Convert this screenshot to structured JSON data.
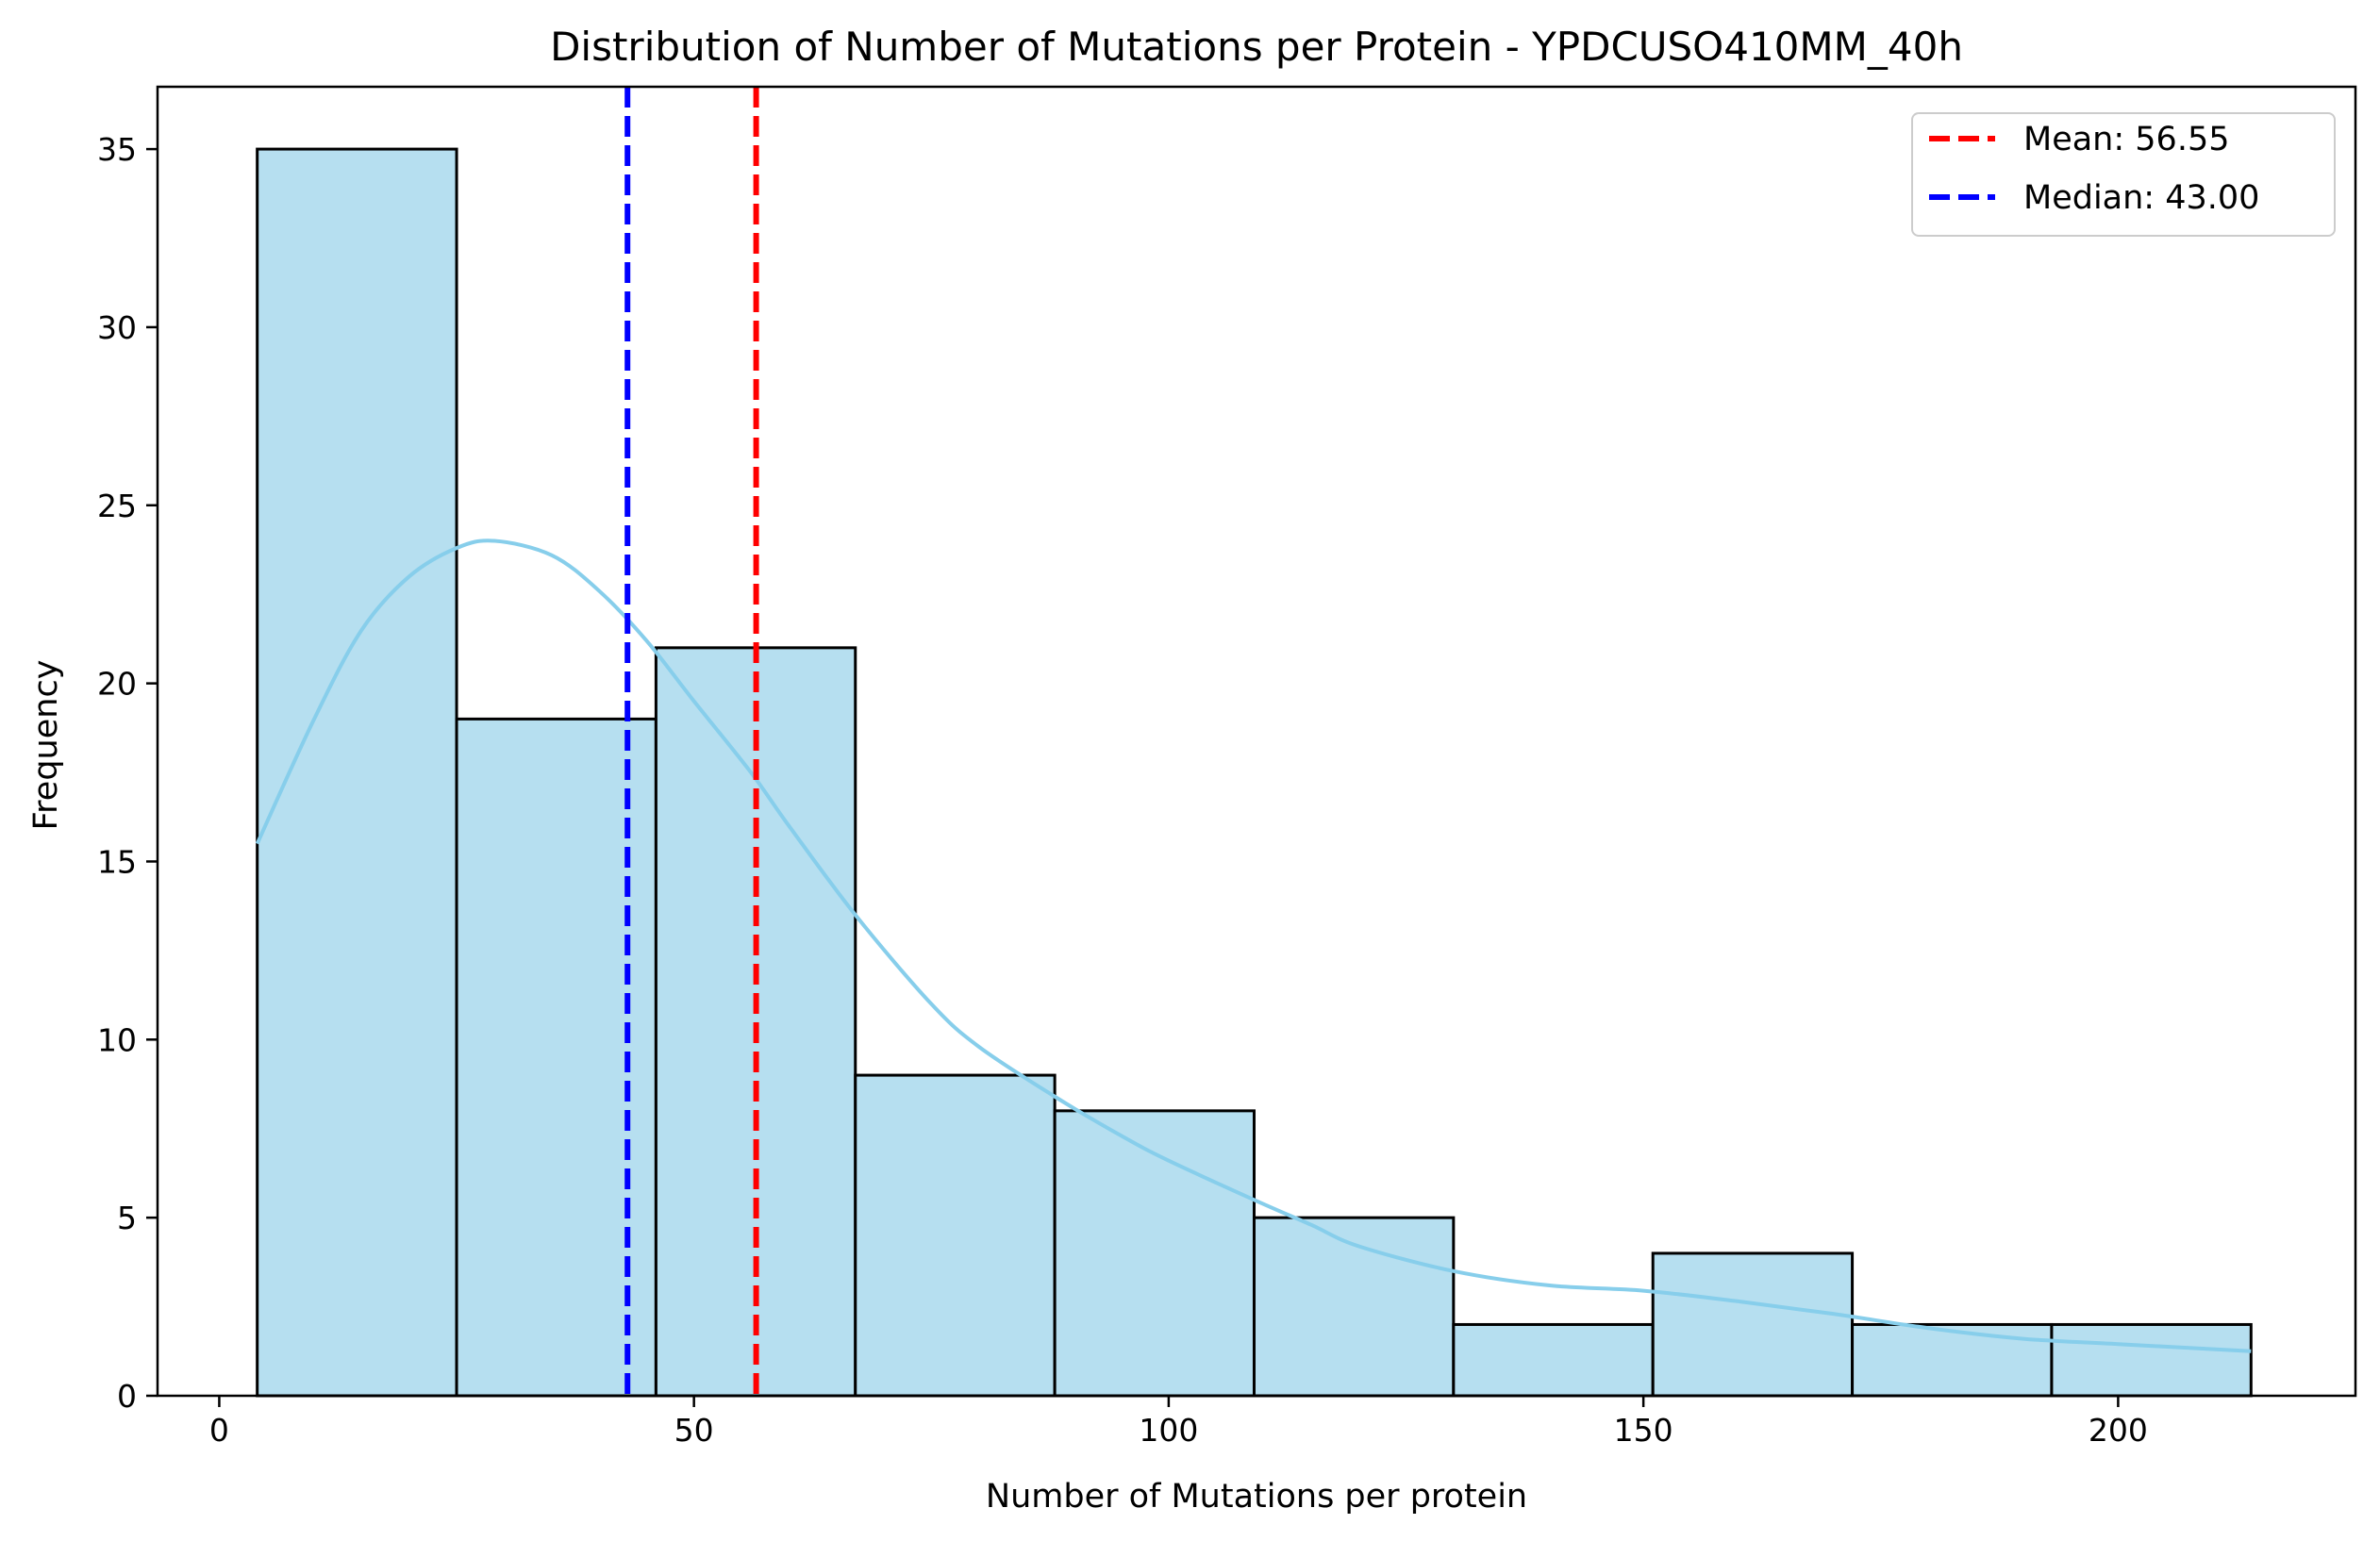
{
  "chart_data": {
    "type": "bar",
    "title": "Distribution of Number of Mutations per Protein - YPDCUSO410MM_40h",
    "xlabel": "Number of Mutations per protein",
    "ylabel": "Frequency",
    "xlim": [
      -6.5,
      225
    ],
    "ylim": [
      0,
      36.75
    ],
    "xticks": [
      0,
      50,
      100,
      150,
      200
    ],
    "yticks": [
      0,
      5,
      10,
      15,
      20,
      25,
      30,
      35
    ],
    "bins": [
      {
        "x0": 4,
        "x1": 25,
        "count": 35
      },
      {
        "x0": 25,
        "x1": 46,
        "count": 19
      },
      {
        "x0": 46,
        "x1": 67,
        "count": 21
      },
      {
        "x0": 67,
        "x1": 88,
        "count": 9
      },
      {
        "x0": 88,
        "x1": 109,
        "count": 8
      },
      {
        "x0": 109,
        "x1": 130,
        "count": 5
      },
      {
        "x0": 130,
        "x1": 151,
        "count": 2
      },
      {
        "x0": 151,
        "x1": 172,
        "count": 4
      },
      {
        "x0": 172,
        "x1": 193,
        "count": 2
      },
      {
        "x0": 193,
        "x1": 214,
        "count": 2
      }
    ],
    "kde": {
      "x": [
        4,
        10,
        15,
        20,
        25,
        29,
        35,
        40,
        45,
        50,
        56,
        60,
        67,
        75,
        80,
        88,
        95,
        100,
        109,
        115,
        120,
        130,
        140,
        150,
        160,
        170,
        180,
        190,
        200,
        214
      ],
      "y": [
        15.5,
        19.0,
        21.5,
        23.0,
        23.8,
        24.0,
        23.6,
        22.6,
        21.2,
        19.5,
        17.5,
        16.0,
        13.5,
        11.0,
        9.8,
        8.4,
        7.3,
        6.6,
        5.5,
        4.8,
        4.2,
        3.5,
        3.1,
        2.95,
        2.65,
        2.3,
        1.9,
        1.6,
        1.45,
        1.25
      ]
    },
    "reference_lines": [
      {
        "name": "Mean: 56.55",
        "x": 56.55,
        "color": "#ff0000",
        "style": "dashed"
      },
      {
        "name": "Median: 43.00",
        "x": 43.0,
        "color": "#0000ff",
        "style": "dashed"
      }
    ],
    "colors": {
      "bar_fill": "#b6dff0",
      "bar_edge": "#000000",
      "kde": "#87ceeb"
    },
    "legend_position": "top-right",
    "grid": false
  }
}
